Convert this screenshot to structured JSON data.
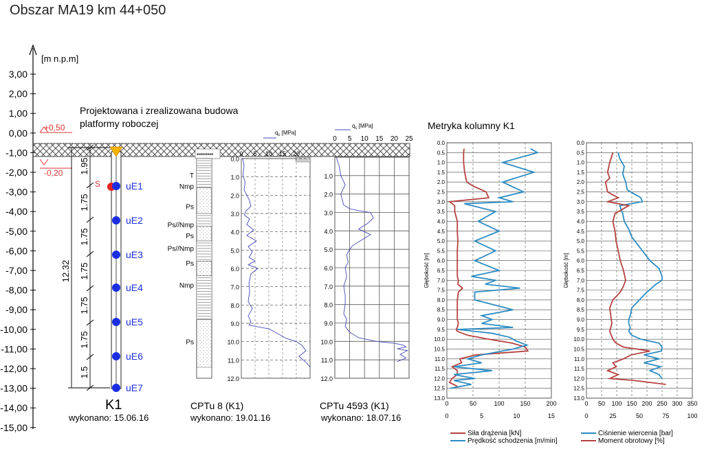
{
  "title": "Obszar MA19 km 44+050",
  "axis_label": "[m n.p.m]",
  "elev_ticks": [
    "3,00",
    "2,00",
    "1,00",
    "0,00",
    "-1,00",
    "-2,00",
    "-3,00",
    "-4,00",
    "-5,00",
    "-6,00",
    "-7,00",
    "-8,00",
    "-9,00",
    "-10,00",
    "-11,00",
    "-12,00",
    "-13,00",
    "-14,00",
    "-15,00"
  ],
  "platform_text": [
    "Projektowana i zrealizowana budowa",
    "platformy roboczej"
  ],
  "level_plus": "+0,50",
  "level_minus": "-0,20",
  "dims": {
    "total": "12.32",
    "top": "1.95",
    "segs": [
      "1.75",
      "1.75",
      "1.75",
      "1.75",
      "1.75",
      "1.5"
    ],
    "s_label": "S"
  },
  "sensors": [
    "uE1",
    "uE2",
    "uE3",
    "uE4",
    "uE5",
    "uE6",
    "uE7"
  ],
  "column": {
    "name": "K1",
    "date": "wykonano: 15.06.16"
  },
  "cpt8": {
    "name": "CPTu  8 (K1)",
    "date": "wykonano: 19.01.16",
    "qc_label": "q",
    "qc_sub": "c",
    "qc_unit": " [MPa]",
    "x_ticks": [
      "0",
      "5",
      "10",
      "15",
      "20"
    ],
    "depth_ticks": [
      "0.0",
      "1.0",
      "2.0",
      "3.0",
      "4.0",
      "5.0",
      "6.0",
      "7.0",
      "8.0",
      "9.0",
      "10.0",
      "11.0",
      "12.0"
    ],
    "layers": [
      "T",
      "Nmp",
      "Ps",
      "Ps//Nmp",
      "Ps",
      "Ps//Nmp",
      "Ps",
      "Nmp",
      "Ps"
    ]
  },
  "cpt4593": {
    "name": "CPTu  4593 (K1)",
    "date": "wykonano: 18.07.16",
    "qc_label": "q",
    "qc_sub": "c",
    "qc_unit": " [MPa]",
    "x_ticks": [
      "0",
      "5",
      "10",
      "15",
      "20",
      "25"
    ],
    "depth_ticks": [
      "0.0",
      "1.0",
      "2.0",
      "3.0",
      "4.0",
      "5.0",
      "6.0",
      "7.0",
      "8.0",
      "9.0",
      "10.0",
      "11.0",
      "12.0"
    ]
  },
  "metryka": {
    "title": "Metryka kolumny K1",
    "depth_label": "Głębokość [m]",
    "depth_ticks": [
      "0.0",
      "0.5",
      "1.0",
      "1.5",
      "2.0",
      "2.5",
      "3.0",
      "3.5",
      "4.0",
      "4.5",
      "5.0",
      "5.5",
      "6.0",
      "6.5",
      "7.0",
      "7.5",
      "8.0",
      "8.5",
      "9.0",
      "9.5",
      "10.0",
      "10.5",
      "11.0",
      "11.5",
      "12.0",
      "12.5",
      "13.0"
    ],
    "chart1_top_ticks": [
      "0",
      "50",
      "100",
      "150",
      "200"
    ],
    "chart1_bot_ticks": [
      "0",
      "5",
      "10",
      "15"
    ],
    "chart2_top_ticks": [
      "0",
      "50",
      "100",
      "150",
      "200",
      "250",
      "300",
      "350"
    ],
    "chart2_bot_ticks": [
      "0",
      "25",
      "50",
      "75",
      "100"
    ],
    "legend": [
      "Siła drążenia [kN]",
      "Prędkość schodzenia [m/min]",
      "Ciśnienie wiercenia [bar]",
      "Moment obrotowy [%]"
    ],
    "colors": {
      "red": "#b5413f",
      "blue": "#2b8cc4"
    }
  },
  "chart_data": [
    {
      "type": "line",
      "title": "CPTu  8 (K1)",
      "xlabel": "qc [MPa]",
      "ylabel": "",
      "xlim": [
        0,
        25
      ],
      "ylim": [
        0,
        12
      ],
      "series": [
        {
          "x": [
            0.5,
            1.0,
            0.6,
            1.4,
            1.0,
            2.0,
            3.0,
            3.5,
            1.5,
            1.2,
            3.0,
            2.0,
            4.5,
            2.0,
            5.5,
            2.5,
            4.0,
            2.8,
            5.0,
            2.5,
            6.0,
            3.5,
            2.8,
            3.0,
            2.5,
            4.0,
            2.5,
            3.5,
            2.8,
            10.0,
            12.5,
            16.0,
            20.0,
            22.0,
            23.5,
            21.0,
            24.0,
            25.0
          ],
          "y": [
            0.0,
            0.4,
            0.9,
            1.3,
            1.7,
            2.0,
            2.3,
            2.6,
            2.9,
            3.1,
            3.3,
            3.6,
            3.9,
            4.2,
            4.5,
            4.8,
            5.1,
            5.4,
            5.6,
            5.8,
            6.0,
            6.3,
            6.8,
            7.3,
            7.8,
            8.2,
            8.6,
            8.9,
            9.1,
            9.3,
            9.5,
            9.8,
            10.0,
            10.2,
            10.5,
            10.8,
            11.2,
            11.4
          ]
        }
      ]
    },
    {
      "type": "line",
      "title": "CPTu  4593 (K1)",
      "xlabel": "qc [MPa]",
      "ylabel": "",
      "xlim": [
        0,
        25
      ],
      "ylim": [
        0,
        12
      ],
      "series": [
        {
          "x": [
            0.5,
            1.5,
            2.0,
            3.5,
            2.0,
            2.5,
            3.0,
            5.0,
            8.0,
            12.0,
            13.0,
            11.0,
            8.0,
            12.0,
            9.0,
            6.0,
            5.0,
            4.0,
            4.5,
            3.5,
            4.0,
            3.0,
            3.5,
            3.5,
            3.0,
            4.0,
            3.5,
            5.0,
            8.0,
            14.0,
            20.0,
            23.0,
            24.0,
            21.0,
            24.5,
            22.0,
            24.0,
            21.0
          ],
          "y": [
            0.0,
            0.5,
            1.0,
            1.5,
            2.0,
            2.3,
            2.6,
            2.8,
            2.9,
            3.0,
            3.3,
            3.6,
            3.9,
            4.2,
            4.5,
            4.8,
            5.0,
            5.3,
            5.7,
            6.0,
            6.5,
            7.0,
            7.5,
            8.0,
            8.5,
            8.8,
            9.2,
            9.5,
            9.8,
            10.0,
            10.1,
            10.2,
            10.3,
            10.4,
            10.5,
            10.7,
            10.9,
            11.1
          ]
        }
      ]
    },
    {
      "type": "line",
      "title": "Metryka kolumny K1",
      "xlabel": "",
      "ylabel": "Głębokość [m]",
      "ylim": [
        0,
        13
      ],
      "series": [
        {
          "name": "Siła drążenia [kN]",
          "x": [
            33,
            32,
            32,
            34,
            38,
            50,
            75,
            80,
            5,
            15,
            15,
            20,
            20,
            21,
            20,
            20,
            20,
            20,
            22,
            21,
            30,
            22,
            20,
            20,
            20,
            22,
            20,
            18,
            20,
            40,
            80,
            125,
            150,
            155,
            55,
            25,
            28,
            10,
            20,
            20,
            10,
            5,
            20
          ],
          "y": [
            0.3,
            0.5,
            1.0,
            1.5,
            2.0,
            2.2,
            2.5,
            2.8,
            3.0,
            3.2,
            3.5,
            4.0,
            4.5,
            5.0,
            5.5,
            6.0,
            6.5,
            6.8,
            7.0,
            7.2,
            7.4,
            7.6,
            8.0,
            8.5,
            9.0,
            9.2,
            9.4,
            9.5,
            9.6,
            9.8,
            10.0,
            10.2,
            10.4,
            10.6,
            10.8,
            11.0,
            11.2,
            11.4,
            11.6,
            11.8,
            12.0,
            12.2,
            12.4
          ]
        },
        {
          "name": "Prędkość schodzenia [m/min]",
          "x": [
            12.0,
            13.0,
            8.0,
            12.5,
            8.0,
            11.0,
            7.5,
            9.5,
            2.5,
            7.0,
            4.5,
            7.5,
            4.0,
            7.0,
            4.0,
            7.5,
            3.5,
            7.0,
            5.5,
            10.5,
            4.0,
            4.0,
            9.5,
            5.0,
            6.5,
            5.0,
            9.5,
            1.5,
            6.5,
            9.0,
            10.0,
            11.5,
            9.5,
            5.0,
            3.0,
            5.0,
            1.0,
            6.5,
            1.0,
            4.0,
            1.0,
            3.5,
            0.5
          ],
          "y": [
            0.3,
            0.5,
            1.0,
            1.5,
            2.0,
            2.5,
            2.8,
            3.0,
            3.1,
            3.5,
            4.0,
            4.5,
            5.0,
            5.5,
            6.0,
            6.5,
            6.8,
            7.0,
            7.2,
            7.4,
            7.6,
            8.0,
            8.5,
            8.8,
            9.0,
            9.2,
            9.4,
            9.5,
            9.7,
            9.9,
            10.1,
            10.3,
            10.5,
            10.8,
            11.0,
            11.2,
            11.4,
            11.6,
            11.8,
            12.0,
            12.1,
            12.3,
            12.5
          ]
        }
      ]
    },
    {
      "type": "line",
      "title": "",
      "xlabel": "",
      "ylabel": "Głębokość [m]",
      "ylim": [
        0,
        13
      ],
      "series": [
        {
          "name": "Ciśnienie wiercenia [bar]",
          "x": [
            105,
            110,
            125,
            120,
            130,
            135,
            180,
            185,
            110,
            120,
            125,
            140,
            150,
            170,
            190,
            210,
            240,
            250,
            250,
            230,
            200,
            175,
            150,
            145,
            140,
            140,
            145,
            140,
            150,
            180,
            210,
            240,
            250,
            248,
            190,
            240,
            190,
            245,
            210,
            240,
            250
          ],
          "y": [
            0.5,
            0.8,
            1.2,
            1.6,
            2.0,
            2.4,
            2.8,
            3.0,
            3.2,
            3.6,
            4.0,
            4.4,
            4.8,
            5.2,
            5.6,
            6.0,
            6.4,
            6.8,
            7.0,
            7.2,
            7.6,
            8.0,
            8.4,
            8.8,
            9.0,
            9.2,
            9.4,
            9.6,
            9.8,
            10.0,
            10.1,
            10.2,
            10.4,
            10.6,
            10.8,
            11.0,
            11.2,
            11.4,
            11.6,
            11.8,
            12.0
          ]
        },
        {
          "name": "Moment obrotowy [%]",
          "x": [
            25,
            22,
            20,
            22,
            18,
            20,
            30,
            20,
            40,
            27,
            25,
            27,
            28,
            30,
            32,
            35,
            37,
            35,
            32,
            25,
            22,
            23,
            24,
            22,
            25,
            28,
            35,
            60,
            42,
            35,
            25,
            28,
            20,
            30,
            22,
            45,
            75
          ],
          "y": [
            0.5,
            1.0,
            1.5,
            1.8,
            2.0,
            2.5,
            2.8,
            3.0,
            3.2,
            3.6,
            4.0,
            4.5,
            5.0,
            5.5,
            6.0,
            6.5,
            7.0,
            7.3,
            7.6,
            8.0,
            8.4,
            8.8,
            9.2,
            9.6,
            10.0,
            10.2,
            10.4,
            10.6,
            10.8,
            11.0,
            11.2,
            11.4,
            11.6,
            11.8,
            12.0,
            12.1,
            12.3
          ]
        }
      ]
    }
  ]
}
